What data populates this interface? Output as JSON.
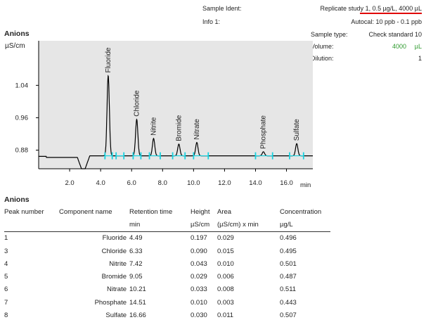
{
  "header": {
    "sample_ident_label": "Sample Ident:",
    "sample_ident_value": "Replicate study 1, 0.5 µg/L, 4000 µL",
    "info_label": "Info 1:",
    "info_value": "Autocal: 10 ppb - 0.1 ppb",
    "sample_type_label": "Sample type:",
    "sample_type_value": "Check standard 10",
    "volume_label": "Volume:",
    "volume_value": "4000",
    "volume_unit": "µL",
    "dilution_label": "Dilution:",
    "dilution_value": "1",
    "accent_color": "#e00000",
    "value_color": "#2e9a2e"
  },
  "chart_title": "Anions",
  "table_title": "Anions",
  "chart_data": {
    "type": "line",
    "title": "Anions",
    "ylabel": "µS/cm",
    "xlabel": "min",
    "xlim": [
      0.0,
      17.7
    ],
    "ylim": [
      0.834,
      1.15
    ],
    "xticks": [
      2.0,
      4.0,
      6.0,
      8.0,
      10.0,
      12.0,
      14.0,
      16.0
    ],
    "yticks": [
      0.88,
      0.96,
      1.04
    ],
    "xtick_labels": [
      "2.0",
      "4.0",
      "6.0",
      "8.0",
      "10.0",
      "12.0",
      "14.0",
      "16.0"
    ],
    "ytick_labels": [
      "0.88",
      "0.96",
      "1.04"
    ],
    "baseline": 0.866,
    "line_color": "#000000",
    "marker_color": "#19d3e0",
    "plot_background": "#e6e6e6",
    "water_dip": {
      "start": 2.5,
      "bottom_from": 2.8,
      "bottom_to": 3.0,
      "end": 3.3
    },
    "peaks": [
      {
        "name": "Fluoride",
        "rt": 4.49,
        "apex": 1.064
      },
      {
        "name": "Chloride",
        "rt": 6.33,
        "apex": 0.956
      },
      {
        "name": "Nitrite",
        "rt": 7.42,
        "apex": 0.909
      },
      {
        "name": "Bromide",
        "rt": 9.05,
        "apex": 0.895
      },
      {
        "name": "Nitrate",
        "rt": 10.21,
        "apex": 0.899
      },
      {
        "name": "Phosphate",
        "rt": 14.51,
        "apex": 0.876
      },
      {
        "name": "Sulfate",
        "rt": 16.66,
        "apex": 0.896
      }
    ],
    "integration_marks": [
      4.28,
      4.75,
      5.0,
      5.5,
      6.1,
      6.6,
      7.15,
      7.85,
      8.65,
      9.45,
      10.0,
      10.95,
      14.0,
      15.1,
      16.2,
      17.1
    ]
  },
  "table": {
    "headers": [
      "Peak number",
      "Component name",
      "Retention time",
      "Height",
      "Area",
      "Concentration"
    ],
    "units": [
      "",
      "",
      "min",
      "µS/cm",
      "(µS/cm) x min",
      "µg/L"
    ],
    "rows": [
      [
        "1",
        "Fluoride",
        "4.49",
        "0.197",
        "0.029",
        "0.496"
      ],
      [
        "3",
        "Chloride",
        "6.33",
        "0.090",
        "0.015",
        "0.495"
      ],
      [
        "4",
        "Nitrite",
        "7.42",
        "0.043",
        "0.010",
        "0.501"
      ],
      [
        "5",
        "Bromide",
        "9.05",
        "0.029",
        "0.006",
        "0.487"
      ],
      [
        "6",
        "Nitrate",
        "10.21",
        "0.033",
        "0.008",
        "0.511"
      ],
      [
        "7",
        "Phosphate",
        "14.51",
        "0.010",
        "0.003",
        "0.443"
      ],
      [
        "8",
        "Sulfate",
        "16.66",
        "0.030",
        "0.011",
        "0.507"
      ]
    ]
  }
}
